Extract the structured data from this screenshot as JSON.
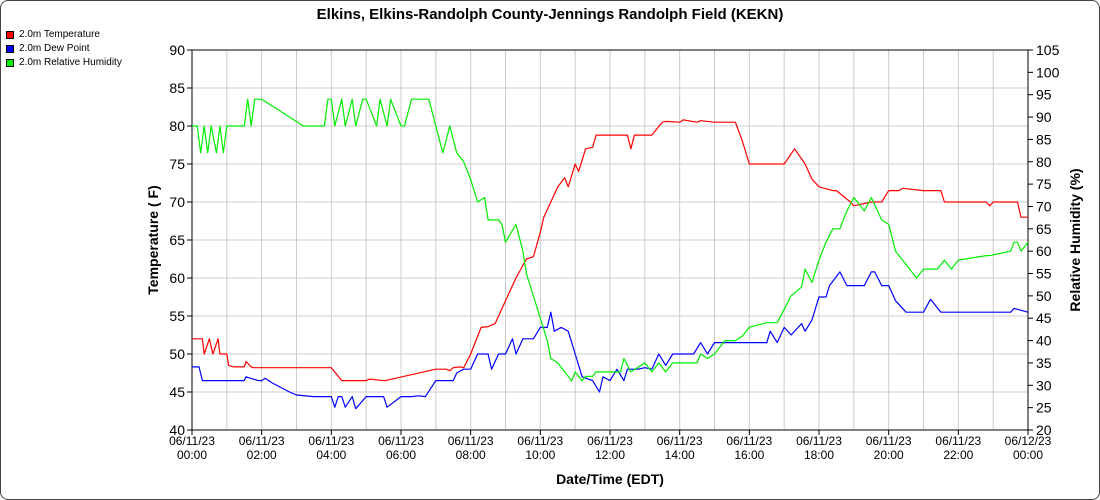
{
  "chart_data": {
    "type": "line",
    "title": "Elkins, Elkins-Randolph County-Jennings Randolph Field (KEKN)",
    "xlabel": "Date/Time (EDT)",
    "ylabel": "Temperature ( F)",
    "y2label": "Relative Humidity (%)",
    "xlim": [
      0,
      24
    ],
    "ylim": [
      40,
      90
    ],
    "y2lim": [
      20,
      105
    ],
    "grid": true,
    "legend_position": "top-left",
    "x_ticks": [
      {
        "at": 0,
        "date": "06/11/23",
        "time": "00:00"
      },
      {
        "at": 2,
        "date": "06/11/23",
        "time": "02:00"
      },
      {
        "at": 4,
        "date": "06/11/23",
        "time": "04:00"
      },
      {
        "at": 6,
        "date": "06/11/23",
        "time": "06:00"
      },
      {
        "at": 8,
        "date": "06/11/23",
        "time": "08:00"
      },
      {
        "at": 10,
        "date": "06/11/23",
        "time": "10:00"
      },
      {
        "at": 12,
        "date": "06/11/23",
        "time": "12:00"
      },
      {
        "at": 14,
        "date": "06/11/23",
        "time": "14:00"
      },
      {
        "at": 16,
        "date": "06/11/23",
        "time": "16:00"
      },
      {
        "at": 18,
        "date": "06/11/23",
        "time": "18:00"
      },
      {
        "at": 20,
        "date": "06/11/23",
        "time": "20:00"
      },
      {
        "at": 22,
        "date": "06/11/23",
        "time": "22:00"
      },
      {
        "at": 24,
        "date": "06/12/23",
        "time": "00:00"
      }
    ],
    "y_ticks": [
      40,
      45,
      50,
      55,
      60,
      65,
      70,
      75,
      80,
      85,
      90
    ],
    "y2_ticks": [
      20,
      25,
      30,
      35,
      40,
      45,
      50,
      55,
      60,
      65,
      70,
      75,
      80,
      85,
      90,
      95,
      100,
      105
    ],
    "series": [
      {
        "name": "2.0m Temperature",
        "color": "#ff0000",
        "axis": "left",
        "x": [
          0,
          0.3,
          0.35,
          0.5,
          0.6,
          0.75,
          0.8,
          0.9,
          1.0,
          1.05,
          1.2,
          1.5,
          1.55,
          1.7,
          1.75,
          2.0,
          4.0,
          4.3,
          4.4,
          5.0,
          5.1,
          5.5,
          5.55,
          7.0,
          7.3,
          7.4,
          7.5,
          7.7,
          7.8,
          8.0,
          8.3,
          8.5,
          8.7,
          9.0,
          9.3,
          9.6,
          9.8,
          10.0,
          10.1,
          10.3,
          10.5,
          10.7,
          10.8,
          11.0,
          11.1,
          11.3,
          11.5,
          11.6,
          11.8,
          12.0,
          12.5,
          12.6,
          12.7,
          13.0,
          13.2,
          13.5,
          13.6,
          14.0,
          14.1,
          14.5,
          14.6,
          15.0,
          15.5,
          15.6,
          15.8,
          16.0,
          16.5,
          16.8,
          17.0,
          17.3,
          17.6,
          17.8,
          18.0,
          18.4,
          18.5,
          18.9,
          19.0,
          19.5,
          19.8,
          20.0,
          20.3,
          20.4,
          21.0,
          21.4,
          21.5,
          21.6,
          22.0,
          22.8,
          22.9,
          23.0,
          23.7,
          23.8,
          24.0
        ],
        "values": [
          52,
          52,
          50,
          52,
          50,
          52,
          50,
          50,
          50,
          48.5,
          48.3,
          48.3,
          49,
          48.3,
          48.2,
          48.2,
          48.2,
          46.5,
          46.5,
          46.5,
          46.7,
          46.5,
          46.5,
          48,
          48,
          47.8,
          48.2,
          48.3,
          48.2,
          50,
          53.5,
          53.6,
          54,
          57,
          60,
          62.5,
          62.8,
          66,
          68,
          70,
          72,
          73.2,
          72,
          75,
          74,
          77,
          77.2,
          78.8,
          78.8,
          78.8,
          78.8,
          77,
          78.8,
          78.8,
          78.8,
          80.5,
          80.6,
          80.5,
          80.8,
          80.5,
          80.7,
          80.5,
          80.5,
          80.5,
          78,
          75,
          75,
          75,
          75,
          77,
          75,
          73,
          72,
          71.5,
          71.5,
          70,
          69.5,
          70,
          70,
          71.5,
          71.5,
          71.8,
          71.5,
          71.5,
          71.5,
          70,
          70,
          70,
          69.5,
          70,
          70,
          68,
          68
        ]
      },
      {
        "name": "2.0m Dew Point",
        "color": "#0000ff",
        "axis": "left",
        "x": [
          0,
          0.2,
          0.3,
          1.0,
          1.5,
          1.55,
          1.9,
          2.0,
          2.1,
          2.3,
          2.8,
          3.0,
          3.5,
          4.0,
          4.1,
          4.2,
          4.3,
          4.4,
          4.6,
          4.7,
          5.0,
          5.5,
          5.6,
          6.0,
          6.3,
          6.5,
          6.7,
          7.0,
          7.3,
          7.5,
          7.6,
          7.8,
          8.0,
          8.2,
          8.5,
          8.6,
          8.8,
          9.0,
          9.2,
          9.3,
          9.5,
          9.8,
          10.0,
          10.2,
          10.3,
          10.4,
          10.6,
          10.8,
          11.0,
          11.2,
          11.5,
          11.7,
          11.8,
          12.0,
          12.2,
          12.4,
          12.5,
          12.8,
          13.0,
          13.2,
          13.4,
          13.6,
          13.8,
          14.0,
          14.4,
          14.6,
          14.8,
          15.0,
          15.5,
          16.0,
          16.5,
          16.6,
          16.8,
          16.9,
          17.0,
          17.2,
          17.5,
          17.6,
          17.8,
          18.0,
          18.2,
          18.3,
          18.6,
          18.8,
          19.0,
          19.3,
          19.5,
          19.6,
          19.8,
          20.0,
          20.2,
          20.5,
          20.7,
          20.8,
          21.0,
          21.2,
          21.5,
          21.6,
          21.8,
          22.0,
          23.5,
          23.6,
          24.0
        ],
        "values": [
          48.3,
          48.3,
          46.5,
          46.5,
          46.5,
          47,
          46.5,
          46.5,
          46.8,
          46.2,
          45,
          44.6,
          44.4,
          44.4,
          43,
          44.4,
          44.4,
          43,
          44.4,
          42.8,
          44.4,
          44.4,
          43,
          44.4,
          44.4,
          44.5,
          44.4,
          46.5,
          46.5,
          46.5,
          47.5,
          48,
          48,
          50,
          50,
          48,
          50,
          50,
          52,
          50,
          52,
          52,
          53.5,
          53.5,
          55.5,
          53,
          53.5,
          53,
          50,
          47,
          46.5,
          45,
          47,
          46.5,
          48,
          46.5,
          48,
          48,
          48.2,
          48,
          50,
          48.5,
          50,
          50,
          50,
          51.5,
          50,
          51.5,
          51.5,
          51.5,
          51.5,
          53,
          51.5,
          52.5,
          53.5,
          52.5,
          54,
          53,
          54.5,
          57.5,
          57.5,
          59,
          60.8,
          59,
          59,
          59,
          60.8,
          60.8,
          59,
          59,
          57,
          55.5,
          55.5,
          55.5,
          55.5,
          57.2,
          55.5,
          55.5,
          55.5,
          55.5,
          55.5,
          56,
          55.5
        ]
      },
      {
        "name": "2.0m Relative Humidity",
        "color": "#00ee00",
        "axis": "right",
        "x": [
          0,
          0.15,
          0.25,
          0.35,
          0.45,
          0.55,
          0.7,
          0.8,
          0.9,
          1.0,
          1.5,
          1.6,
          1.7,
          1.8,
          1.9,
          2.0,
          3.2,
          3.4,
          3.5,
          3.8,
          3.9,
          4.0,
          4.1,
          4.3,
          4.4,
          4.6,
          4.7,
          4.9,
          5.0,
          5.3,
          5.4,
          5.6,
          5.7,
          6.0,
          6.1,
          6.3,
          6.4,
          6.7,
          6.8,
          7.0,
          7.2,
          7.4,
          7.6,
          7.8,
          8.0,
          8.2,
          8.4,
          8.5,
          8.8,
          8.9,
          9.0,
          9.3,
          9.5,
          9.6,
          9.8,
          10.0,
          10.2,
          10.3,
          10.5,
          10.7,
          10.9,
          11.0,
          11.2,
          11.3,
          11.5,
          11.6,
          11.8,
          12.0,
          12.3,
          12.4,
          12.6,
          12.8,
          13.0,
          13.2,
          13.4,
          13.6,
          13.8,
          14.0,
          14.5,
          14.6,
          14.8,
          15.0,
          15.3,
          15.5,
          15.6,
          15.8,
          16.0,
          16.5,
          16.8,
          17.0,
          17.2,
          17.5,
          17.6,
          17.8,
          18.0,
          18.2,
          18.4,
          18.6,
          18.8,
          19.0,
          19.3,
          19.5,
          19.8,
          20.0,
          20.2,
          20.4,
          20.6,
          20.8,
          21.0,
          21.2,
          21.4,
          21.6,
          21.8,
          22.0,
          22.8,
          22.9,
          23.5,
          23.6,
          23.7,
          23.8,
          24.0
        ],
        "values": [
          88,
          88,
          82,
          88,
          82,
          88,
          82,
          88,
          82,
          88,
          88,
          94,
          88,
          94,
          94,
          94,
          88,
          88,
          88,
          88,
          94,
          94,
          88,
          94,
          88,
          94,
          88,
          94,
          94,
          88,
          94,
          88,
          94,
          88,
          88,
          94,
          94,
          94,
          94,
          88,
          82,
          88,
          82,
          80,
          76,
          71,
          72,
          67,
          67,
          66,
          62,
          66,
          60,
          55,
          50,
          45,
          40,
          36,
          35,
          33,
          31,
          33,
          31,
          32,
          32,
          33,
          33,
          33,
          33,
          36,
          33,
          34,
          35,
          33,
          35,
          33,
          35,
          35,
          35,
          37,
          36,
          37,
          40,
          40,
          40,
          41,
          43,
          44,
          44,
          47,
          50,
          52,
          56,
          53,
          58,
          62,
          65,
          65,
          69,
          72,
          69,
          72,
          67,
          66,
          60,
          58,
          56,
          54,
          56,
          56,
          56,
          58,
          56,
          58,
          59,
          59,
          60,
          62,
          62,
          60,
          62
        ]
      }
    ]
  }
}
